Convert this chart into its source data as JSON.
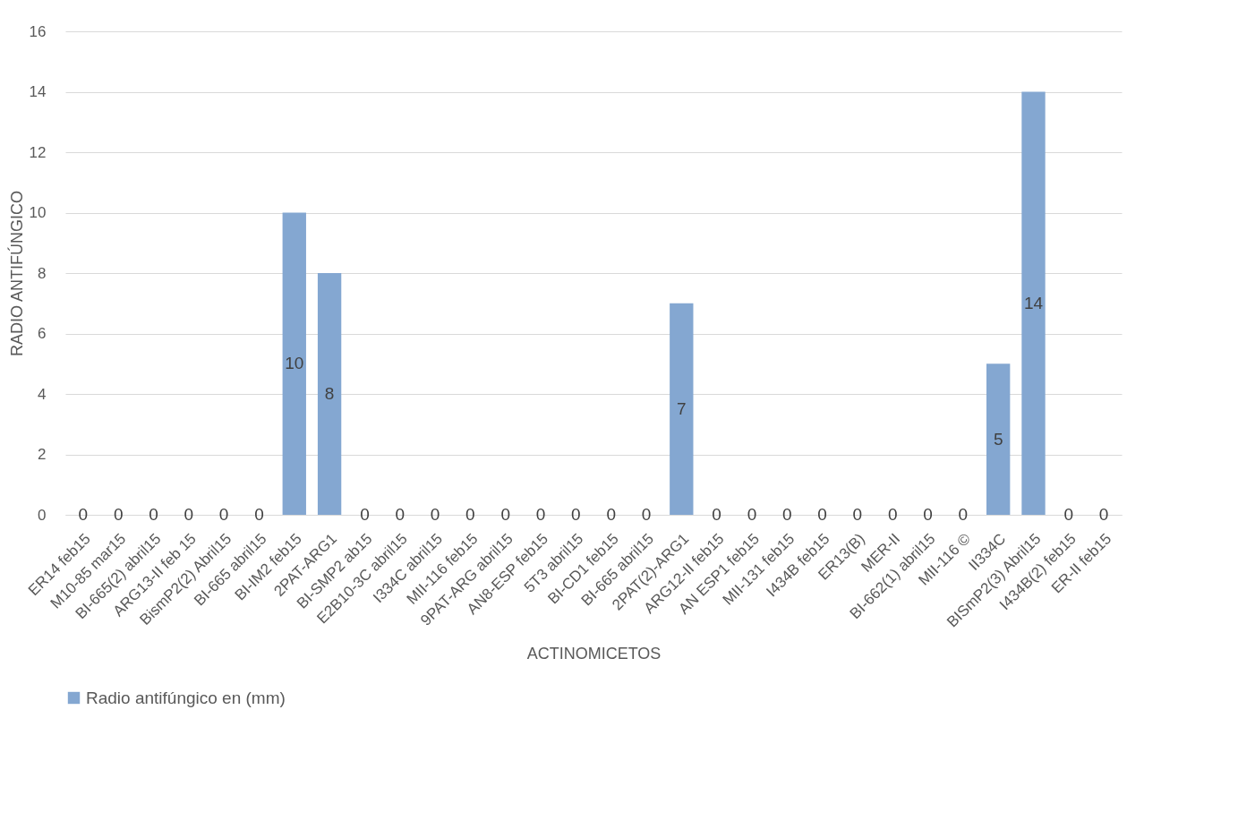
{
  "chart_data": {
    "type": "bar",
    "xlabel": "ACTINOMICETOS",
    "ylabel": "RADIO ANTIFÚNGICO",
    "categories": [
      "ER14 feb15",
      "M10-85 mar15",
      "BI-665(2) abril15",
      "ARG13-II feb 15",
      "BismP2(2) Abril15",
      "BI-665 abril15",
      "BI-IM2 feb15",
      "2PAT-ARG1",
      "BI-SMP2 ab15",
      "E2B10-3C abril15",
      "I334C abril15",
      "MII-116 feb15",
      "9PAT-ARG abril15",
      "AN8-ESP feb15",
      "5T3 abril15",
      "BI-CD1 feb15",
      "BI-665 abril15",
      "2PAT(2)-ARG1",
      "ARG12-II feb15",
      "AN ESP1 feb15",
      "MII-131 feb15",
      "I434B feb15",
      "ER13(B)",
      "MER-II",
      "BI-662(1) abril15",
      "MII-116 ©",
      "II334C",
      "BISmP2(3) Abril15",
      "I434B(2) feb15",
      "ER-II feb15"
    ],
    "series": [
      {
        "name": "Radio antifúngico en (mm)",
        "color": "#84a7d1",
        "values": [
          0,
          0,
          0,
          0,
          0,
          0,
          10,
          8,
          0,
          0,
          0,
          0,
          0,
          0,
          0,
          0,
          0,
          7,
          0,
          0,
          0,
          0,
          0,
          0,
          0,
          0,
          5,
          14,
          0,
          0
        ]
      }
    ],
    "ylim": [
      0,
      16
    ],
    "yticks": [
      0,
      2,
      4,
      6,
      8,
      10,
      12,
      14,
      16
    ],
    "grid": "y",
    "legend": "bottom",
    "data_labels": true
  }
}
